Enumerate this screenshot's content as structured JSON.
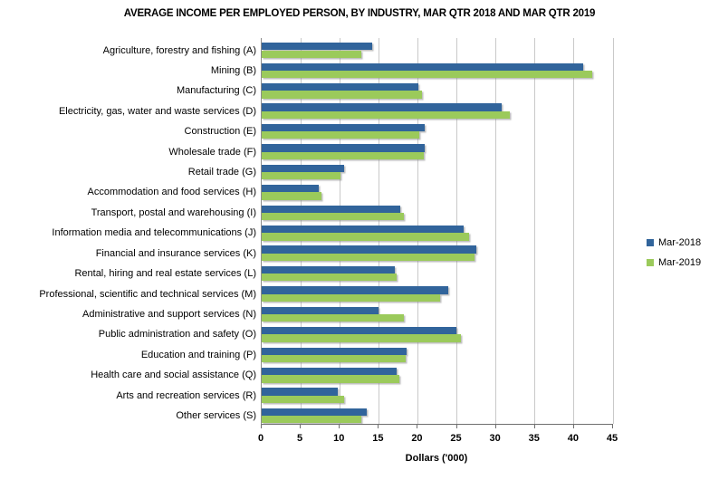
{
  "chart_data": {
    "type": "bar",
    "orientation": "horizontal",
    "title": "AVERAGE INCOME PER EMPLOYED PERSON, BY INDUSTRY, MAR QTR 2018 AND MAR QTR 2019",
    "xlabel": "Dollars ('000)",
    "xlim": [
      0,
      45
    ],
    "xticks": [
      0,
      5,
      10,
      15,
      20,
      25,
      30,
      35,
      40,
      45
    ],
    "grid": true,
    "legend_position": "right",
    "categories": [
      "Agriculture, forestry and fishing (A)",
      "Mining (B)",
      "Manufacturing (C)",
      "Electricity, gas, water and waste services (D)",
      "Construction (E)",
      "Wholesale trade (F)",
      "Retail trade (G)",
      "Accommodation and food services (H)",
      "Transport, postal and warehousing (I)",
      "Information media and telecommunications (J)",
      "Financial and insurance services (K)",
      "Rental, hiring and real estate services (L)",
      "Professional, scientific and technical services (M)",
      "Administrative and support services (N)",
      "Public administration and safety (O)",
      "Education and training (P)",
      "Health care and social assistance (Q)",
      "Arts and recreation services (R)",
      "Other services (S)"
    ],
    "series": [
      {
        "name": "Mar-2018",
        "color": "#31649b",
        "values": [
          14.2,
          41.2,
          20.1,
          30.7,
          20.9,
          20.9,
          10.5,
          7.3,
          17.7,
          25.9,
          27.5,
          17.0,
          23.9,
          15.0,
          24.9,
          18.6,
          17.3,
          9.8,
          13.5
        ]
      },
      {
        "name": "Mar-2019",
        "color": "#9bca5b",
        "values": [
          12.7,
          42.3,
          20.5,
          31.8,
          20.2,
          20.8,
          10.1,
          7.6,
          18.2,
          26.6,
          27.3,
          17.3,
          22.8,
          18.2,
          25.5,
          18.4,
          17.6,
          10.5,
          12.8
        ]
      }
    ]
  },
  "colors": {
    "background": "#ffffff",
    "gridline": "#c9c9c9",
    "axis_line": "#6f6f6f",
    "text": "#000000"
  }
}
